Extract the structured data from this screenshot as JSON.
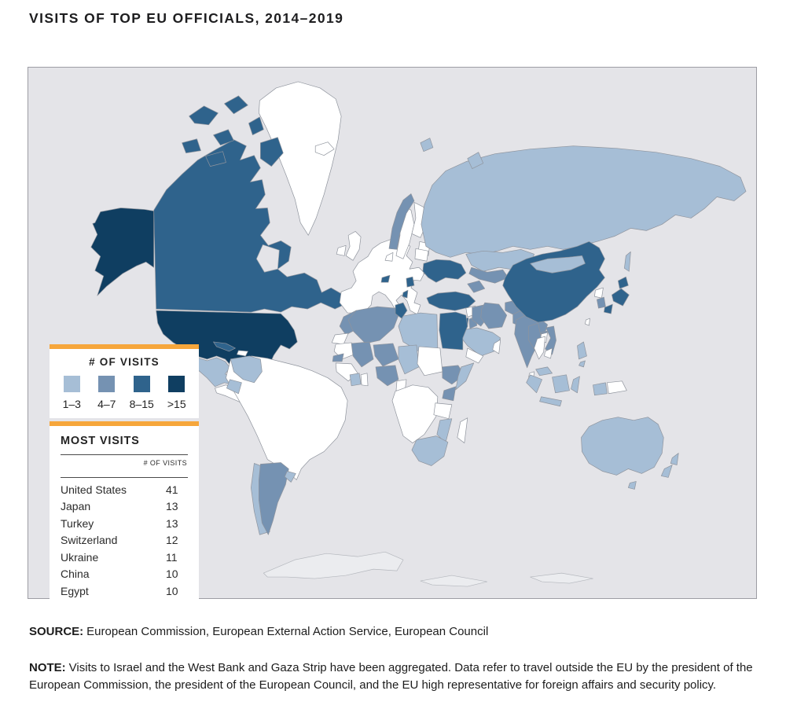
{
  "title": "VISITS OF TOP EU OFFICIALS, 2014–2019",
  "colors": {
    "accent_orange": "#f6a63b",
    "ocean": "#e4e4e8",
    "map_border": "#9d9da4",
    "country_border": "#8f949d",
    "no_data": "#ffffff"
  },
  "legend": {
    "title": "# OF VISITS",
    "categories": [
      {
        "label": "1–3",
        "color": "#a6bed6"
      },
      {
        "label": "4–7",
        "color": "#7592b2"
      },
      {
        "label": "8–15",
        "color": "#2f638c"
      },
      {
        "label": ">15",
        "color": "#0f3e61"
      }
    ]
  },
  "most_visits": {
    "title": "MOST VISITS",
    "column_header": "# OF VISITS",
    "rows": [
      {
        "country": "United States",
        "visits": "41"
      },
      {
        "country": "Japan",
        "visits": "13"
      },
      {
        "country": "Turkey",
        "visits": "13"
      },
      {
        "country": "Switzerland",
        "visits": "12"
      },
      {
        "country": "Ukraine",
        "visits": "11"
      },
      {
        "country": "China",
        "visits": "10"
      },
      {
        "country": "Egypt",
        "visits": "10"
      }
    ]
  },
  "source": {
    "label": "SOURCE:",
    "text": "European Commission, European External Action Service, European Council"
  },
  "note": {
    "label": "NOTE:",
    "text": "Visits to Israel and the West Bank and Gaza Strip have been aggregated. Data refer to travel outside the EU by the president of the European Commission, the president of the European Council, and the EU high representative for foreign affairs and security policy."
  },
  "map": {
    "bin_colors": {
      "1-3": "#a6bed6",
      "4-7": "#7592b2",
      "8-15": "#2f638c",
      ">15": "#0f3e61",
      "none": "#ffffff",
      "water": "#e4e4e8",
      "ice": "#ebecef"
    },
    "regions": [
      {
        "id": "antarctica",
        "bin": "ice"
      },
      {
        "id": "greenland",
        "bin": "none"
      },
      {
        "id": "iceland",
        "bin": "none"
      },
      {
        "id": "canada-main",
        "bin": "8-15"
      },
      {
        "id": "canada-islands",
        "bin": "8-15"
      },
      {
        "id": "hudson-bay",
        "bin": "water"
      },
      {
        "id": "alaska",
        "bin": ">15"
      },
      {
        "id": "usa",
        "bin": ">15"
      },
      {
        "id": "mexico",
        "bin": "1-3"
      },
      {
        "id": "central-america",
        "bin": "none"
      },
      {
        "id": "cuba",
        "bin": "8-15"
      },
      {
        "id": "hispaniola",
        "bin": "none"
      },
      {
        "id": "south-america-main",
        "bin": "none"
      },
      {
        "id": "colombia",
        "bin": "1-3"
      },
      {
        "id": "ecuador",
        "bin": "1-3"
      },
      {
        "id": "chile",
        "bin": "1-3"
      },
      {
        "id": "argentina",
        "bin": "4-7"
      },
      {
        "id": "uruguay",
        "bin": "1-3"
      },
      {
        "id": "eu-mainland",
        "bin": "none"
      },
      {
        "id": "uk",
        "bin": "none"
      },
      {
        "id": "ireland",
        "bin": "none"
      },
      {
        "id": "sweden",
        "bin": "none"
      },
      {
        "id": "finland",
        "bin": "none"
      },
      {
        "id": "baltics",
        "bin": "none"
      },
      {
        "id": "denmark",
        "bin": "none"
      },
      {
        "id": "norway",
        "bin": "4-7"
      },
      {
        "id": "switzerland",
        "bin": "8-15"
      },
      {
        "id": "serbia",
        "bin": "8-15"
      },
      {
        "id": "albania",
        "bin": "8-15"
      },
      {
        "id": "belarus",
        "bin": "none"
      },
      {
        "id": "moldova",
        "bin": "4-7"
      },
      {
        "id": "ukraine",
        "bin": "8-15"
      },
      {
        "id": "turkey",
        "bin": "8-15"
      },
      {
        "id": "russia",
        "bin": "1-3"
      },
      {
        "id": "svalbard",
        "bin": "1-3"
      },
      {
        "id": "novaya-zemlya",
        "bin": "1-3"
      },
      {
        "id": "kazakhstan",
        "bin": "1-3"
      },
      {
        "id": "central-asia",
        "bin": "4-7"
      },
      {
        "id": "caucasus",
        "bin": "4-7"
      },
      {
        "id": "syria",
        "bin": "none"
      },
      {
        "id": "israel",
        "bin": "8-15"
      },
      {
        "id": "jordan",
        "bin": "4-7"
      },
      {
        "id": "iraq",
        "bin": "4-7"
      },
      {
        "id": "iran",
        "bin": "4-7"
      },
      {
        "id": "saudi-arabia",
        "bin": "1-3"
      },
      {
        "id": "yemen",
        "bin": "none"
      },
      {
        "id": "oman",
        "bin": "none"
      },
      {
        "id": "afghanistan",
        "bin": "4-7"
      },
      {
        "id": "pakistan",
        "bin": "4-7"
      },
      {
        "id": "india",
        "bin": "4-7"
      },
      {
        "id": "bangladesh",
        "bin": "4-7"
      },
      {
        "id": "sri-lanka",
        "bin": "none"
      },
      {
        "id": "china",
        "bin": "8-15"
      },
      {
        "id": "mongolia",
        "bin": "1-3"
      },
      {
        "id": "north-korea",
        "bin": "none"
      },
      {
        "id": "south-korea",
        "bin": "4-7"
      },
      {
        "id": "japan",
        "bin": "8-15"
      },
      {
        "id": "sakhalin",
        "bin": "1-3"
      },
      {
        "id": "taiwan",
        "bin": "none"
      },
      {
        "id": "myanmar",
        "bin": "4-7"
      },
      {
        "id": "laos",
        "bin": "none"
      },
      {
        "id": "thailand",
        "bin": "none"
      },
      {
        "id": "vietnam",
        "bin": "4-7"
      },
      {
        "id": "cambodia",
        "bin": "none"
      },
      {
        "id": "malaysia",
        "bin": "1-3"
      },
      {
        "id": "indonesia",
        "bin": "1-3"
      },
      {
        "id": "papua-new-guinea",
        "bin": "none"
      },
      {
        "id": "philippines",
        "bin": "1-3"
      },
      {
        "id": "morocco",
        "bin": "4-7"
      },
      {
        "id": "western-sahara",
        "bin": "none"
      },
      {
        "id": "algeria",
        "bin": "4-7"
      },
      {
        "id": "tunisia",
        "bin": "8-15"
      },
      {
        "id": "libya",
        "bin": "1-3"
      },
      {
        "id": "egypt",
        "bin": "8-15"
      },
      {
        "id": "mauritania",
        "bin": "none"
      },
      {
        "id": "mali",
        "bin": "4-7"
      },
      {
        "id": "niger",
        "bin": "4-7"
      },
      {
        "id": "chad",
        "bin": "1-3"
      },
      {
        "id": "sudan",
        "bin": "none"
      },
      {
        "id": "ethiopia",
        "bin": "4-7"
      },
      {
        "id": "somalia",
        "bin": "1-3"
      },
      {
        "id": "senegal",
        "bin": "4-7"
      },
      {
        "id": "guinea-region",
        "bin": "none"
      },
      {
        "id": "cote-divoire",
        "bin": "1-3"
      },
      {
        "id": "ghana",
        "bin": "none"
      },
      {
        "id": "nigeria",
        "bin": "4-7"
      },
      {
        "id": "cameroon",
        "bin": "none"
      },
      {
        "id": "central-africa",
        "bin": "none"
      },
      {
        "id": "kenya",
        "bin": "4-7"
      },
      {
        "id": "tanzania",
        "bin": "none"
      },
      {
        "id": "mozambique",
        "bin": "1-3"
      },
      {
        "id": "south-africa",
        "bin": "1-3"
      },
      {
        "id": "madagascar",
        "bin": "none"
      },
      {
        "id": "australia",
        "bin": "1-3"
      },
      {
        "id": "tasmania",
        "bin": "1-3"
      },
      {
        "id": "new-zealand",
        "bin": "1-3"
      }
    ]
  },
  "chart_data": {
    "type": "choropleth_map",
    "title": "VISITS OF TOP EU OFFICIALS, 2014–2019",
    "unit": "# of visits",
    "legend_position": "overlay lower-left",
    "bins": [
      {
        "label": "1–3",
        "color": "#a6bed6"
      },
      {
        "label": "4–7",
        "color": "#7592b2"
      },
      {
        "label": "8–15",
        "color": "#2f638c"
      },
      {
        "label": ">15",
        "color": "#0f3e61"
      }
    ],
    "countries_by_bin": {
      ">15": [
        "United States"
      ],
      "8-15": [
        "Canada",
        "Cuba",
        "Switzerland",
        "Serbia",
        "Albania",
        "Ukraine",
        "Turkey",
        "Israel (incl. West Bank and Gaza Strip)",
        "Egypt",
        "Tunisia",
        "China",
        "Japan"
      ],
      "4-7": [
        "Argentina",
        "Norway",
        "Moldova",
        "Morocco",
        "Algeria",
        "Mali",
        "Niger",
        "Senegal",
        "Nigeria",
        "Ethiopia",
        "Kenya",
        "Jordan",
        "Iraq",
        "Iran",
        "Georgia/Azerbaijan",
        "Uzbekistan/Turkmenistan",
        "Afghanistan",
        "Pakistan",
        "India",
        "Bangladesh",
        "Myanmar",
        "Vietnam",
        "South Korea"
      ],
      "1-3": [
        "Mexico",
        "Colombia",
        "Ecuador",
        "Chile",
        "Uruguay",
        "Russia",
        "Kazakhstan",
        "Mongolia",
        "Saudi Arabia",
        "Libya",
        "Chad",
        "Somalia",
        "Côte d'Ivoire",
        "Mozambique",
        "South Africa",
        "Malaysia",
        "Indonesia",
        "Philippines",
        "Australia",
        "New Zealand"
      ],
      "no_data_white": [
        "EU member states",
        "Greenland",
        "Iceland",
        "Brazil",
        "Peru",
        "Venezuela",
        "Bolivia",
        "Paraguay",
        "Sudan",
        "Mauritania",
        "Central Africa",
        "Tanzania",
        "Madagascar",
        "Yemen",
        "Oman",
        "Syria",
        "North Korea",
        "Thailand",
        "Laos",
        "Cambodia",
        "Papua New Guinea",
        "Sri Lanka",
        "Taiwan"
      ]
    },
    "top_countries": [
      {
        "country": "United States",
        "visits": 41
      },
      {
        "country": "Japan",
        "visits": 13
      },
      {
        "country": "Turkey",
        "visits": 13
      },
      {
        "country": "Switzerland",
        "visits": 12
      },
      {
        "country": "Ukraine",
        "visits": 11
      },
      {
        "country": "China",
        "visits": 10
      },
      {
        "country": "Egypt",
        "visits": 10
      }
    ]
  }
}
